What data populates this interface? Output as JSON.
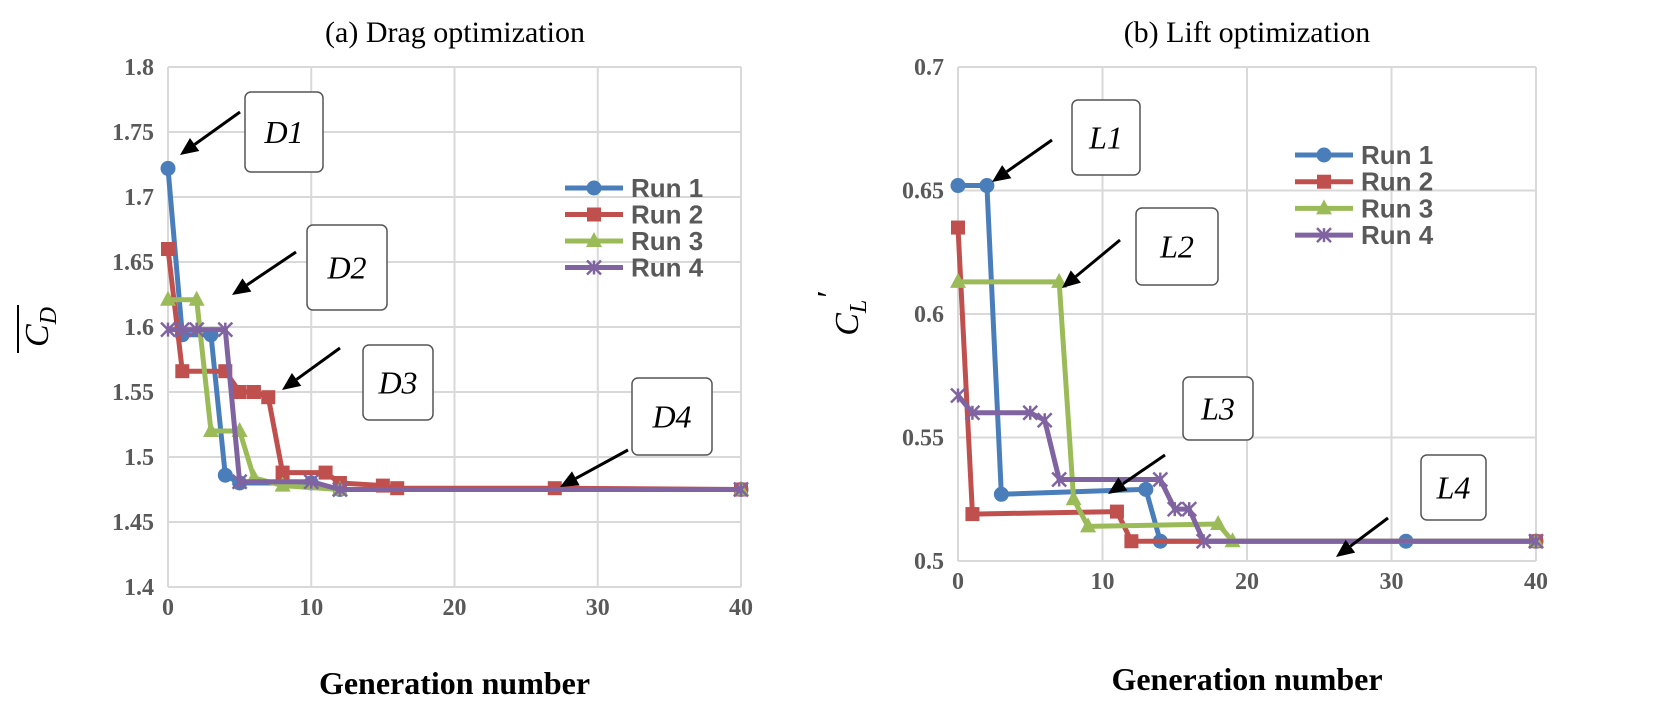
{
  "chart_data": [
    {
      "type": "line",
      "title": "(a)  Drag optimization",
      "xlabel": "Generation number",
      "ylabel": {
        "base": "C",
        "sub": "D",
        "overbar": true
      },
      "xlim": [
        0,
        40
      ],
      "ylim": [
        1.4,
        1.8
      ],
      "xticks": [
        "0",
        "10",
        "20",
        "30",
        "40"
      ],
      "yticks": [
        "1.4",
        "1.45",
        "1.5",
        "1.55",
        "1.6",
        "1.65",
        "1.7",
        "1.75",
        "1.8"
      ],
      "grid": true,
      "legend": "right",
      "annotations": [
        "D1",
        "D2",
        "D3",
        "D4"
      ],
      "series": [
        {
          "name": "Run 1",
          "color": "#4a7ebb",
          "marker": "circle",
          "x": [
            0,
            1,
            3,
            4,
            5,
            10,
            12,
            40
          ],
          "y": [
            1.722,
            1.594,
            1.594,
            1.486,
            1.48,
            1.48,
            1.475,
            1.475
          ]
        },
        {
          "name": "Run 2",
          "color": "#c0504d",
          "marker": "square",
          "x": [
            0,
            1,
            4,
            5,
            6,
            7,
            8,
            11,
            12,
            15,
            16,
            27,
            40
          ],
          "y": [
            1.66,
            1.566,
            1.566,
            1.55,
            1.55,
            1.546,
            1.488,
            1.488,
            1.48,
            1.478,
            1.476,
            1.476,
            1.475
          ]
        },
        {
          "name": "Run 3",
          "color": "#9bbb59",
          "marker": "triangle",
          "x": [
            0,
            2,
            3,
            5,
            6,
            8,
            12,
            40
          ],
          "y": [
            1.621,
            1.621,
            1.52,
            1.52,
            1.484,
            1.478,
            1.475,
            1.475
          ]
        },
        {
          "name": "Run 4",
          "color": "#8064a2",
          "marker": "star",
          "x": [
            0,
            1,
            2,
            4,
            5,
            10,
            12,
            40
          ],
          "y": [
            1.598,
            1.598,
            1.598,
            1.598,
            1.481,
            1.481,
            1.475,
            1.475
          ]
        }
      ]
    },
    {
      "type": "line",
      "title": "(b)  Lift optimization",
      "xlabel": "Generation number",
      "ylabel": {
        "base": "C",
        "sub": "L",
        "prime": "′"
      },
      "xlim": [
        0,
        40
      ],
      "ylim": [
        0.5,
        0.7
      ],
      "xticks": [
        "0",
        "10",
        "20",
        "30",
        "40"
      ],
      "yticks": [
        "0.5",
        "0.55",
        "0.6",
        "0.65",
        "0.7"
      ],
      "grid": true,
      "legend": "top-right",
      "annotations": [
        "L1",
        "L2",
        "L3",
        "L4"
      ],
      "series": [
        {
          "name": "Run 1",
          "color": "#4a7ebb",
          "marker": "circle",
          "x": [
            0,
            2,
            3,
            13,
            14,
            31,
            40
          ],
          "y": [
            0.652,
            0.652,
            0.527,
            0.529,
            0.508,
            0.508,
            0.508
          ]
        },
        {
          "name": "Run 2",
          "color": "#c0504d",
          "marker": "square",
          "x": [
            0,
            1,
            11,
            12,
            40
          ],
          "y": [
            0.635,
            0.519,
            0.52,
            0.508,
            0.508
          ]
        },
        {
          "name": "Run 3",
          "color": "#9bbb59",
          "marker": "triangle",
          "x": [
            0,
            7,
            8,
            9,
            18,
            19,
            40
          ],
          "y": [
            0.613,
            0.613,
            0.525,
            0.514,
            0.515,
            0.508,
            0.508
          ]
        },
        {
          "name": "Run 4",
          "color": "#8064a2",
          "marker": "star",
          "x": [
            0,
            1,
            5,
            6,
            7,
            14,
            15,
            16,
            17,
            40
          ],
          "y": [
            0.567,
            0.56,
            0.56,
            0.557,
            0.533,
            0.533,
            0.521,
            0.521,
            0.508,
            0.508
          ]
        }
      ]
    }
  ]
}
